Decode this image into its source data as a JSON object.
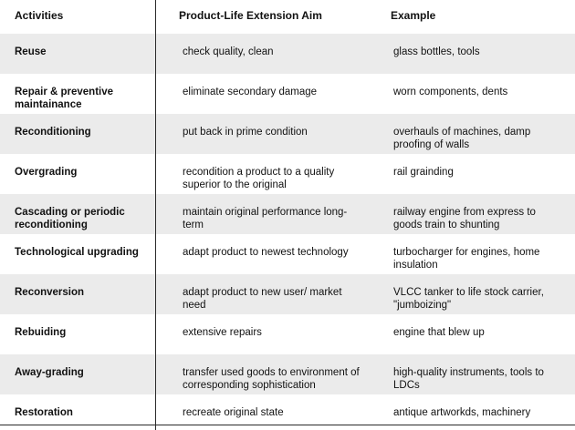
{
  "header": {
    "col1": "Activities",
    "col2": "Product-Life Extension Aim",
    "col3": "Example"
  },
  "rows": [
    {
      "activity": "Reuse",
      "aim": "check quality, clean",
      "example": "glass bottles, tools"
    },
    {
      "activity": "Repair & preventive maintainance",
      "aim": "eliminate secondary damage",
      "example": "worn components, dents"
    },
    {
      "activity": "Reconditioning",
      "aim": "put back in prime condition",
      "example": "overhauls of machines, damp proofing of walls"
    },
    {
      "activity": "Overgrading",
      "aim": "recondition a product to a quality superior to the original",
      "example": "rail grainding"
    },
    {
      "activity": "Cascading or periodic reconditioning",
      "aim": "maintain original performance long-term",
      "example": "railway engine from express to goods train to shunting"
    },
    {
      "activity": "Technological upgrading",
      "aim": "adapt product to newest technology",
      "example": "turbocharger for engines, home insulation"
    },
    {
      "activity": "Reconversion",
      "aim": "adapt product to new user/ market need",
      "example": "VLCC tanker to life stock carrier, \"jumboizing\""
    },
    {
      "activity": "Rebuiding",
      "aim": "extensive repairs",
      "example": "engine that blew up"
    },
    {
      "activity": "Away-grading",
      "aim": "transfer used goods to environment of corresponding sophistication",
      "example": "high-quality instruments, tools to LDCs"
    },
    {
      "activity": "Restoration",
      "aim": "recreate original state",
      "example": "antique artworkds, machinery"
    }
  ]
}
